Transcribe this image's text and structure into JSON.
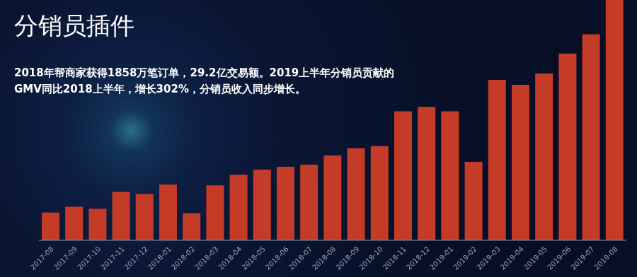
{
  "chart_data": {
    "type": "bar",
    "title": "分销员插件",
    "subtitle": "2018年帮商家获得1858万笔订单，29.2亿交易额。2019上半年分销员贡献的\nGMV同比2018上半年，增长302%，分销员收入同步增长。",
    "categories": [
      "2017-08",
      "2017-09",
      "2017-10",
      "2017-11",
      "2017-12",
      "2018-01",
      "2018-02",
      "2018-03",
      "2018-04",
      "2018-05",
      "2018-06",
      "2018-07",
      "2018-08",
      "2018-09",
      "2018-10",
      "2018-11",
      "2018-12",
      "2019-01",
      "2019-02",
      "2019-03",
      "2019-04",
      "2019-05",
      "2019-06",
      "2019-07",
      "2019-08"
    ],
    "values": [
      39,
      47,
      44,
      68,
      65,
      78,
      38,
      77,
      92,
      99,
      103,
      106,
      119,
      129,
      132,
      181,
      187,
      181,
      110,
      225,
      218,
      234,
      262,
      289,
      337
    ],
    "color": "#c43b27",
    "tick_labels": "x",
    "grid": false
  }
}
